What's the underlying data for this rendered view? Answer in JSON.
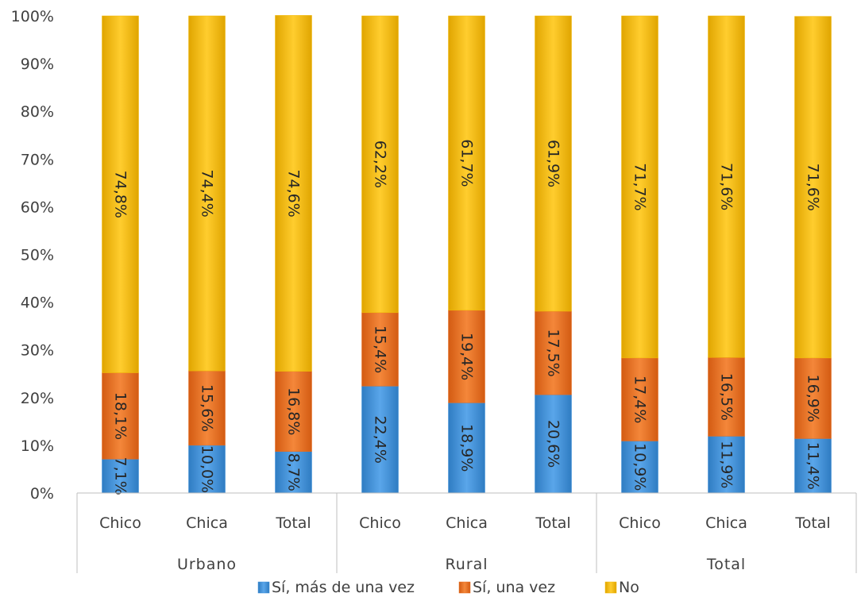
{
  "chart_data": {
    "type": "bar",
    "stacked": true,
    "percent_stacked": true,
    "groups": [
      "Urbano",
      "Rural",
      "Total"
    ],
    "categories": [
      "Chico",
      "Chica",
      "Total",
      "Chico",
      "Chica",
      "Total",
      "Chico",
      "Chica",
      "Total"
    ],
    "category_group": [
      "Urbano",
      "Urbano",
      "Urbano",
      "Rural",
      "Rural",
      "Rural",
      "Total",
      "Total",
      "Total"
    ],
    "series": [
      {
        "name": "Sí, más de una vez",
        "color": "#3a8fd9",
        "values": [
          7.1,
          10.0,
          8.7,
          22.4,
          18.9,
          20.6,
          10.9,
          11.9,
          11.4
        ],
        "labels": [
          "7,1%",
          "10,0%",
          "8,7%",
          "22,4%",
          "18,9%",
          "20,6%",
          "10,9%",
          "11,9%",
          "11,4%"
        ]
      },
      {
        "name": "Sí, una vez",
        "color": "#e86c1e",
        "values": [
          18.1,
          15.6,
          16.8,
          15.4,
          19.4,
          17.5,
          17.4,
          16.5,
          16.9
        ],
        "labels": [
          "18,1%",
          "15,6%",
          "16,8%",
          "15,4%",
          "19,4%",
          "17,5%",
          "17,4%",
          "16,5%",
          "16,9%"
        ]
      },
      {
        "name": "No",
        "color": "#f2b705",
        "values": [
          74.8,
          74.4,
          74.6,
          62.2,
          61.7,
          61.9,
          71.7,
          71.6,
          71.6
        ],
        "labels": [
          "74,8%",
          "74,4%",
          "74,6%",
          "62,2%",
          "61,7%",
          "61,9%",
          "71,7%",
          "71,6%",
          "71,6%"
        ]
      }
    ],
    "y_ticks": [
      "0%",
      "10%",
      "20%",
      "30%",
      "40%",
      "50%",
      "60%",
      "70%",
      "80%",
      "90%",
      "100%"
    ],
    "ylim": [
      0,
      100
    ],
    "grid": false,
    "legend_position": "bottom"
  }
}
